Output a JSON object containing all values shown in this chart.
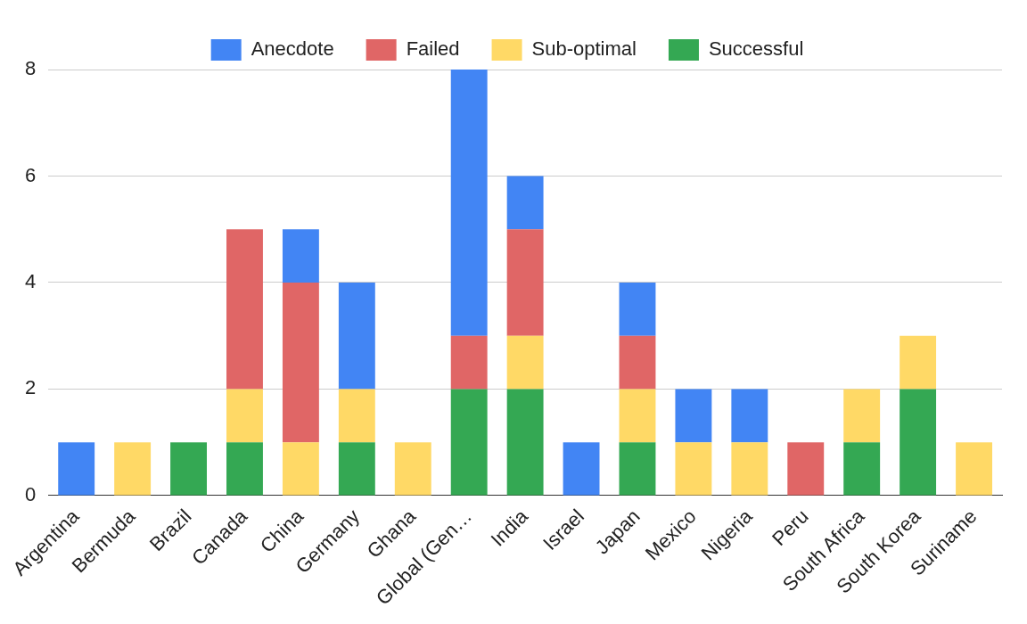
{
  "chart_data": {
    "type": "bar",
    "stacked": true,
    "categories": [
      "Argentina",
      "Bermuda",
      "Brazil",
      "Canada",
      "China",
      "Germany",
      "Ghana",
      "Global (Gen…",
      "India",
      "Israel",
      "Japan",
      "Mexico",
      "Nigeria",
      "Peru",
      "South Africa",
      "South Korea",
      "Suriname"
    ],
    "series": [
      {
        "name": "Successful",
        "color": "#34a853",
        "values": [
          null,
          null,
          1,
          1,
          null,
          1,
          null,
          2,
          2,
          null,
          1,
          null,
          null,
          null,
          1,
          2,
          null
        ]
      },
      {
        "name": "Sub-optimal",
        "color": "#ffd966",
        "values": [
          null,
          1,
          null,
          1,
          1,
          1,
          1,
          null,
          1,
          null,
          1,
          1,
          1,
          null,
          1,
          1,
          1
        ]
      },
      {
        "name": "Failed",
        "color": "#e06666",
        "values": [
          null,
          null,
          null,
          3,
          3,
          null,
          null,
          1,
          2,
          null,
          1,
          null,
          null,
          1,
          null,
          null,
          null
        ]
      },
      {
        "name": "Anecdote",
        "color": "#4285f4",
        "values": [
          1,
          null,
          null,
          null,
          1,
          2,
          null,
          5,
          1,
          1,
          1,
          1,
          1,
          null,
          null,
          null,
          null
        ]
      }
    ],
    "ylim": [
      0,
      8
    ],
    "yticks": [
      0,
      2,
      4,
      6,
      8
    ],
    "grid": "y",
    "legend": "top"
  }
}
